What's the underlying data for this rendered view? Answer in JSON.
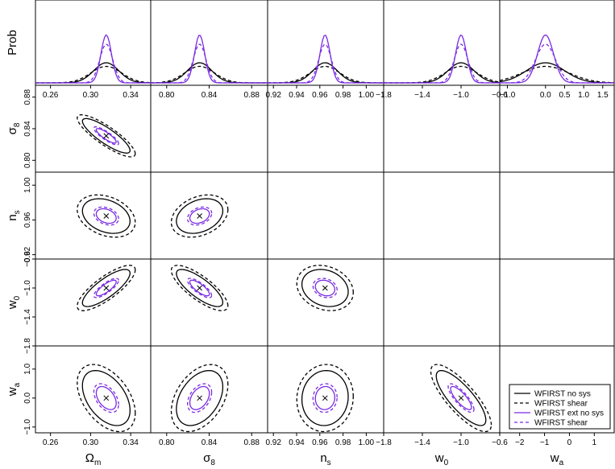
{
  "chart_data": {
    "type": "triangle-plot",
    "diag_ylabel": "Prob",
    "parameters": [
      {
        "key": "om",
        "xlabel": "Ω",
        "sub": "m",
        "range": [
          0.245,
          0.36
        ],
        "ticks": [
          "0.26",
          "0.30",
          "0.34"
        ],
        "tickvals": [
          0.26,
          0.3,
          0.34
        ],
        "fiducial": 0.3156
      },
      {
        "key": "s8",
        "xlabel": "σ",
        "sub": "8",
        "range": [
          0.785,
          0.895
        ],
        "ticks": [
          "0.80",
          "0.84",
          "0.88"
        ],
        "tickvals": [
          0.8,
          0.84,
          0.88
        ],
        "fiducial": 0.831
      },
      {
        "key": "ns",
        "xlabel": "n",
        "sub": "s",
        "range": [
          0.915,
          1.015
        ],
        "ticks": [
          "0.92",
          "0.94",
          "0.96",
          "0.98",
          "1.00"
        ],
        "tickvals": [
          0.92,
          0.94,
          0.96,
          0.98,
          1.0
        ],
        "fiducial": 0.9645
      },
      {
        "key": "w0",
        "xlabel": "w",
        "sub": "0",
        "range": [
          -1.8,
          -0.6
        ],
        "ticks": [
          "−1.8",
          "−1.4",
          "−1.0",
          "−0.6"
        ],
        "tickvals": [
          -1.8,
          -1.4,
          -1.0,
          -0.6
        ],
        "fiducial": -1.0
      },
      {
        "key": "wa",
        "xlabel": "w",
        "sub": "a",
        "range": [
          -1.2,
          1.8
        ],
        "ticks": [
          "−1.0",
          "0.0",
          "0.5",
          "1.0",
          "1.5"
        ],
        "tickvals": [
          -1.0,
          0.0,
          0.5,
          1.0,
          1.5
        ],
        "fiducial": 0.0
      }
    ],
    "row_parameters": [
      {
        "key": "s8",
        "label": "σ",
        "sub": "8",
        "range": [
          0.785,
          0.895
        ],
        "ticks": [
          "0.80",
          "0.84",
          "0.88"
        ],
        "tickvals": [
          0.8,
          0.84,
          0.88
        ]
      },
      {
        "key": "ns",
        "label": "n",
        "sub": "s",
        "range": [
          0.915,
          1.015
        ],
        "ticks": [
          "0.92",
          "0.96",
          "1.00"
        ],
        "tickvals": [
          0.92,
          0.96,
          1.0
        ]
      },
      {
        "key": "w0",
        "label": "w",
        "sub": "0",
        "range": [
          -1.8,
          -0.6
        ],
        "ticks": [
          "−1.8",
          "−1.4",
          "−1.0",
          "−0.6"
        ],
        "tickvals": [
          -1.8,
          -1.4,
          -1.0,
          -0.6
        ]
      },
      {
        "key": "wa",
        "label": "w",
        "sub": "a",
        "range": [
          -1.2,
          1.8
        ],
        "ticks": [
          "−1.0",
          "0.0",
          "1.0"
        ],
        "tickvals": [
          -1.0,
          0.0,
          1.0
        ]
      }
    ],
    "bottom_last_ticks": [
      "−2",
      "−1",
      "0",
      "1"
    ],
    "bottom_last_tickvals": [
      -2,
      -1,
      0,
      1
    ],
    "bottom_last_range": [
      -2.8,
      1.8
    ],
    "series": [
      {
        "name": "WFIRST no sys",
        "color": "#000000",
        "dash": "solid",
        "scale": 1.0
      },
      {
        "name": "WFIRST shear",
        "color": "#000000",
        "dash": "dashed",
        "scale": 1.22
      },
      {
        "name": "WFIRST ext no sys",
        "color": "#7a2be2",
        "dash": "solid",
        "scale": 0.42
      },
      {
        "name": "WFIRST shear",
        "color": "#7a2be2",
        "dash": "dashed",
        "scale": 0.52
      }
    ],
    "marginal_sigmas": {
      "om": 0.0125,
      "s8": 0.0115,
      "ns": 0.0105,
      "w0": 0.135,
      "wa": 0.5
    },
    "correlations": {
      "om_s8": -0.85,
      "om_ns": -0.3,
      "s8_ns": 0.3,
      "om_w0": 0.8,
      "s8_w0": -0.78,
      "ns_w0": -0.2,
      "om_wa": -0.45,
      "s8_wa": 0.4,
      "ns_wa": 0.05,
      "w0_wa": -0.8
    },
    "legend_position": "bottom-right"
  }
}
